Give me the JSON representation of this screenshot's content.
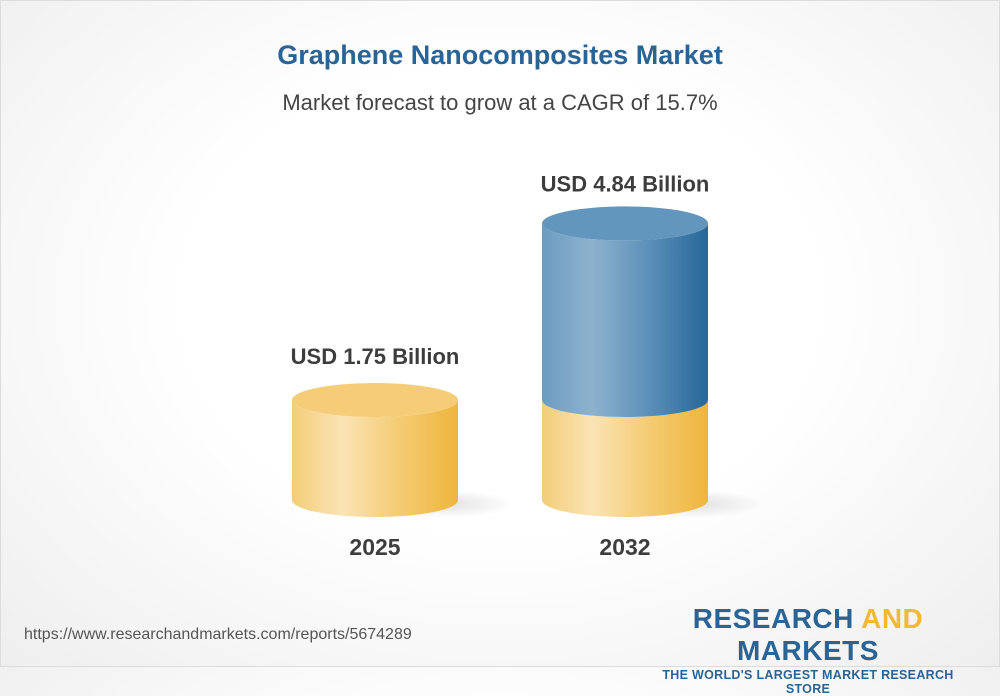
{
  "chart_data": {
    "type": "bar",
    "title": "Graphene Nanocomposites Market",
    "subtitle": "Market forecast to grow at a CAGR of 15.7%",
    "categories": [
      "2025",
      "2032"
    ],
    "values": [
      1.75,
      4.84
    ],
    "data_labels": [
      "USD 1.75 Billion",
      "USD 4.84 Billion"
    ],
    "unit": "USD Billion",
    "style": "3d-cylinder",
    "colors": {
      "base": "#f2b936",
      "growth": "#2a6496"
    },
    "grid": false
  },
  "footer": {
    "url": "https://www.researchandmarkets.com/reports/5674289",
    "logo_part1": "RESEARCH",
    "logo_part2": "AND",
    "logo_part3": "MARKETS",
    "tagline": "THE WORLD'S LARGEST MARKET RESEARCH STORE"
  }
}
